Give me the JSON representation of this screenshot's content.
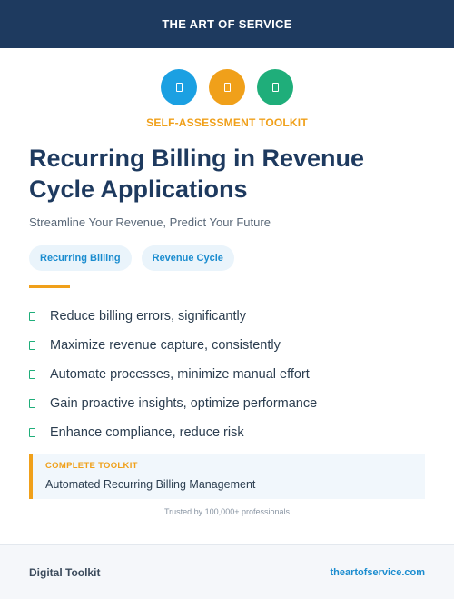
{
  "header": {
    "brand": "THE ART OF SERVICE"
  },
  "icons": [
    {
      "name": "document-icon",
      "color": "#1ba0e2"
    },
    {
      "name": "document-icon",
      "color": "#f0a01a"
    },
    {
      "name": "document-icon",
      "color": "#1fae7a"
    }
  ],
  "eyebrow": "SELF-ASSESSMENT TOOLKIT",
  "title": "Recurring Billing in Revenue Cycle Applications",
  "subtitle": "Streamline Your Revenue, Predict Your Future",
  "tags": [
    "Recurring Billing",
    "Revenue Cycle"
  ],
  "benefits": [
    "Reduce billing errors, significantly",
    "Maximize revenue capture, consistently",
    "Automate processes, minimize manual effort",
    "Gain proactive insights, optimize performance",
    "Enhance compliance, reduce risk"
  ],
  "toolkit": {
    "label": "COMPLETE TOOLKIT",
    "name": "Automated Recurring Billing Management"
  },
  "trusted": "Trusted by 100,000+ professionals",
  "footer": {
    "left": "Digital Toolkit",
    "right": "theartofservice.com"
  }
}
